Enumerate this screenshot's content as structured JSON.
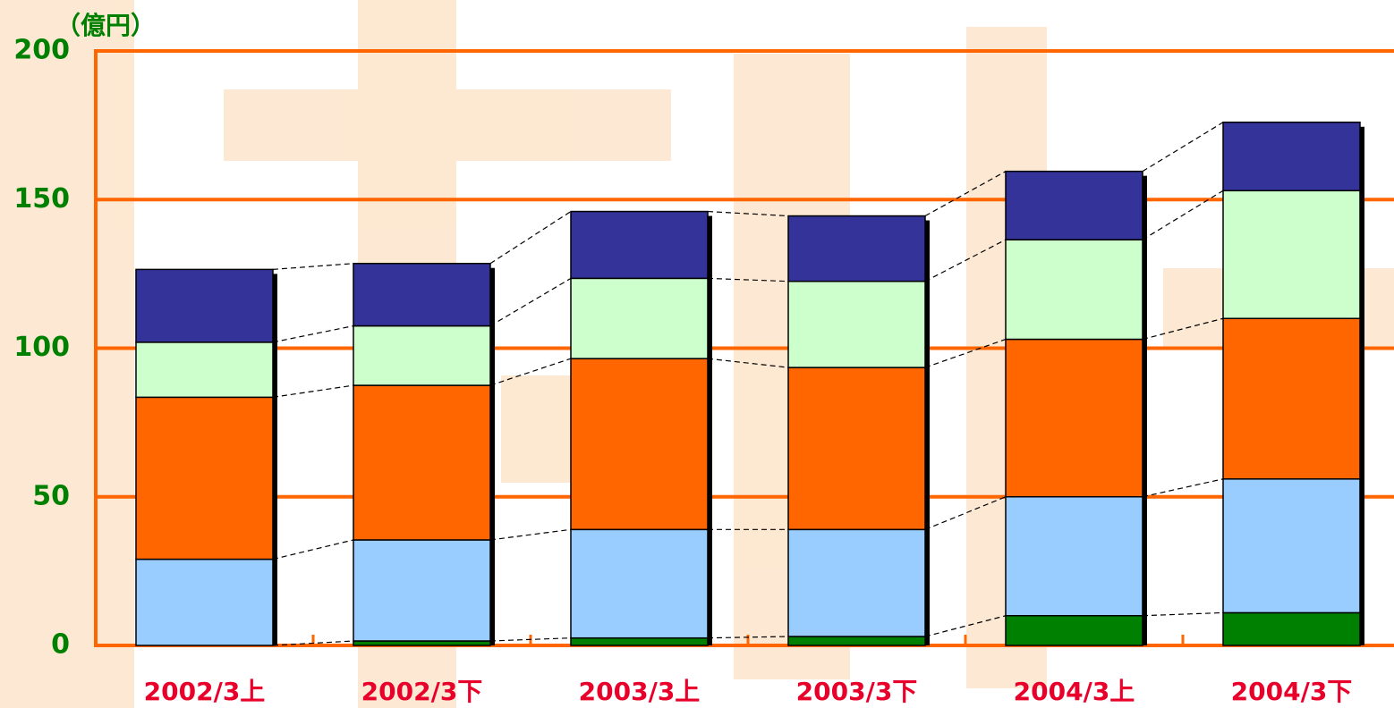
{
  "chart_data": {
    "type": "stacked_bar",
    "y_label": "（億円）",
    "categories": [
      "2002/3上",
      "2002/3下",
      "2003/3上",
      "2003/3下",
      "2004/3上",
      "2004/3下"
    ],
    "series": [
      {
        "color": "#008000",
        "values": [
          0,
          1.5,
          2.5,
          3,
          10,
          11
        ]
      },
      {
        "color": "#99ccff",
        "values": [
          29,
          34,
          36.5,
          36,
          40,
          45
        ]
      },
      {
        "color": "#ff6600",
        "values": [
          54.5,
          52,
          57.5,
          54.5,
          53,
          54
        ]
      },
      {
        "color": "#ccffcc",
        "values": [
          18.5,
          20,
          27,
          29,
          33.5,
          43
        ]
      },
      {
        "color": "#333399",
        "values": [
          24.5,
          21,
          22.5,
          22,
          23,
          23
        ]
      }
    ],
    "ylim": [
      0,
      200
    ],
    "yticks": [
      0,
      50,
      100,
      150,
      200
    ],
    "grid": true,
    "grid_color": "#ff6600"
  }
}
